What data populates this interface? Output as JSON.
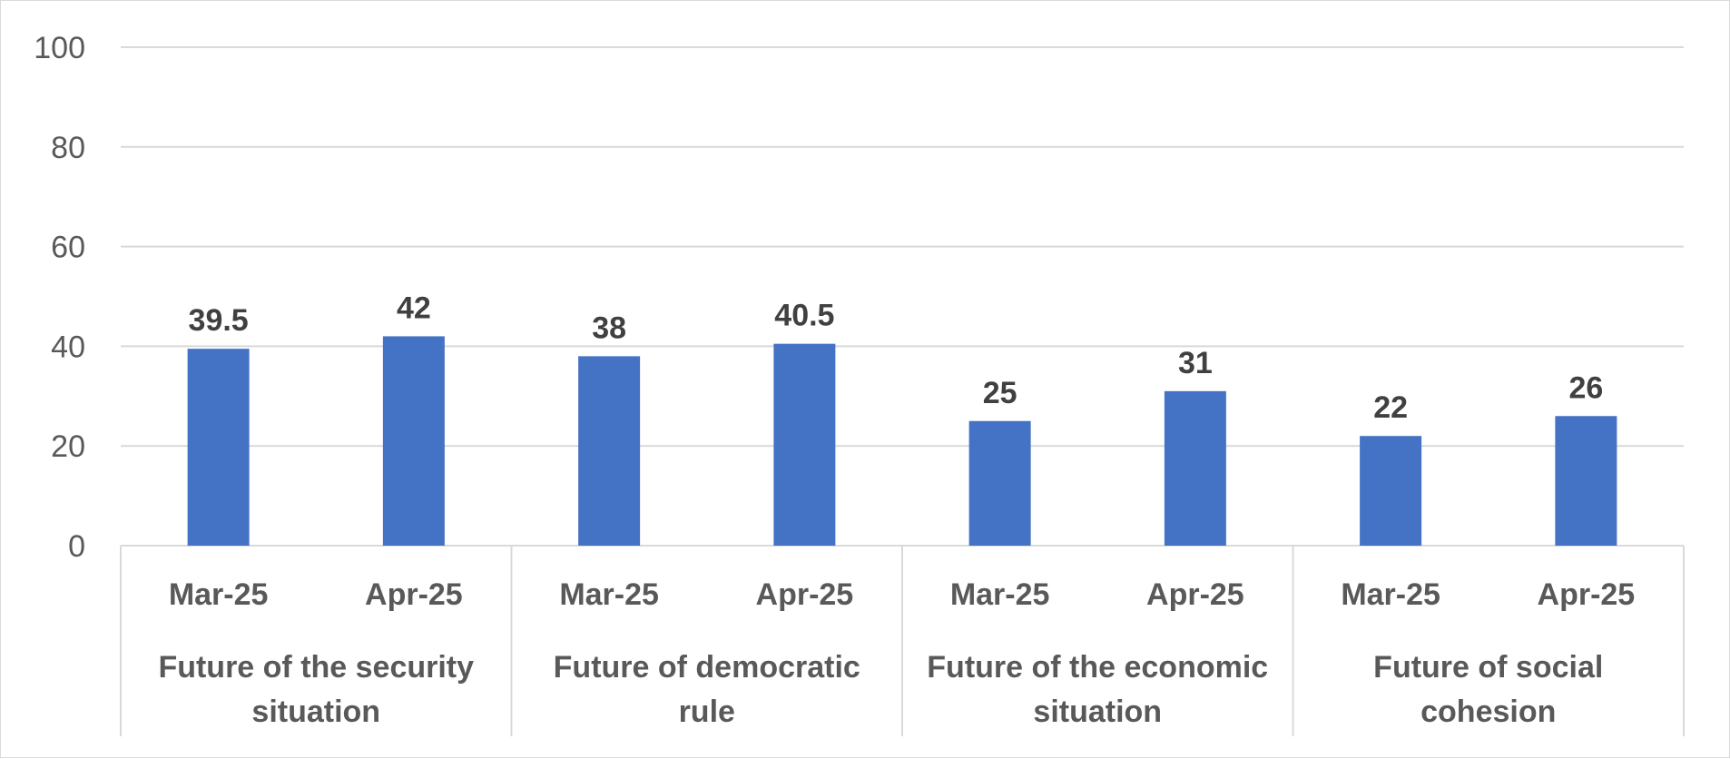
{
  "chart_data": {
    "type": "bar",
    "title": "",
    "xlabel": "",
    "ylabel": "",
    "ylim": [
      0,
      100
    ],
    "yticks": [
      0,
      20,
      40,
      60,
      80,
      100
    ],
    "grid": true,
    "legend": "none",
    "bar_color": "#4472c4",
    "groups": [
      {
        "label_lines": [
          "Future of the security",
          "situation"
        ],
        "categories": [
          "Mar-25",
          "Apr-25"
        ],
        "values": [
          39.5,
          42
        ]
      },
      {
        "label_lines": [
          "Future of democratic",
          "rule"
        ],
        "categories": [
          "Mar-25",
          "Apr-25"
        ],
        "values": [
          38,
          40.5
        ]
      },
      {
        "label_lines": [
          "Future of the economic",
          "situation"
        ],
        "categories": [
          "Mar-25",
          "Apr-25"
        ],
        "values": [
          25,
          31
        ]
      },
      {
        "label_lines": [
          "Future of social",
          "cohesion"
        ],
        "categories": [
          "Mar-25",
          "Apr-25"
        ],
        "values": [
          22,
          26
        ]
      }
    ]
  }
}
